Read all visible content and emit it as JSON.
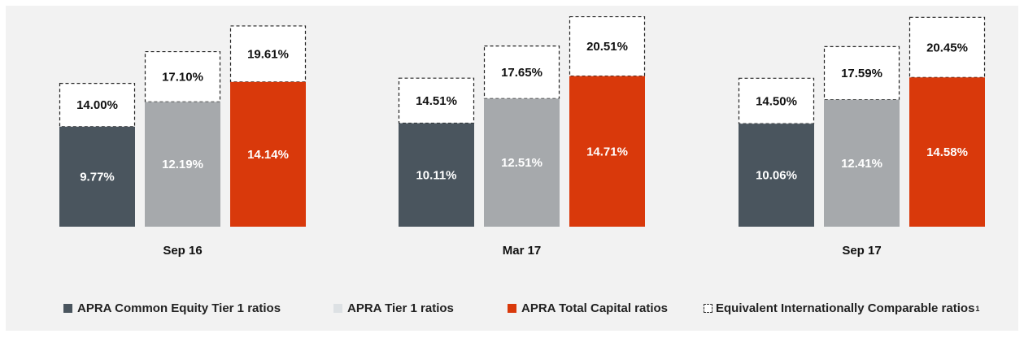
{
  "chart_data": {
    "type": "bar",
    "categories": [
      "Sep 16",
      "Mar 17",
      "Sep 17"
    ],
    "series": [
      {
        "name": "APRA Common Equity Tier 1 ratios",
        "values": [
          9.77,
          10.11,
          10.06
        ],
        "labels": [
          "9.77%",
          "10.11%",
          "10.06%"
        ],
        "color": "#4a555e"
      },
      {
        "name": "APRA Tier 1 ratios",
        "values": [
          12.19,
          12.51,
          12.41
        ],
        "labels": [
          "12.19%",
          "12.51%",
          "12.41%"
        ],
        "color": "#a6a9ac"
      },
      {
        "name": "APRA Total Capital ratios",
        "values": [
          14.14,
          14.71,
          14.58
        ],
        "labels": [
          "14.14%",
          "14.71%",
          "14.58%"
        ],
        "color": "#d9390b"
      }
    ],
    "international_series": {
      "name": "Equivalent Internationally Comparable ratios",
      "footnote": "1",
      "values": [
        [
          14.0,
          17.1,
          19.61
        ],
        [
          14.51,
          17.65,
          20.51
        ],
        [
          14.5,
          17.59,
          20.45
        ]
      ],
      "labels": [
        [
          "14.00%",
          "17.10%",
          "19.61%"
        ],
        [
          "14.51%",
          "17.65%",
          "20.51%"
        ],
        [
          "14.50%",
          "17.59%",
          "20.45%"
        ]
      ]
    },
    "legend_colors": {
      "cet1": "#4a555e",
      "tier1": "#dde1e4",
      "total": "#d9390b"
    }
  },
  "legend": {
    "cet1": "APRA Common Equity Tier 1 ratios",
    "tier1": "APRA Tier 1 ratios",
    "total": "APRA Total Capital ratios",
    "intl": "Equivalent Internationally Comparable ratios",
    "intl_footnote": "1"
  }
}
